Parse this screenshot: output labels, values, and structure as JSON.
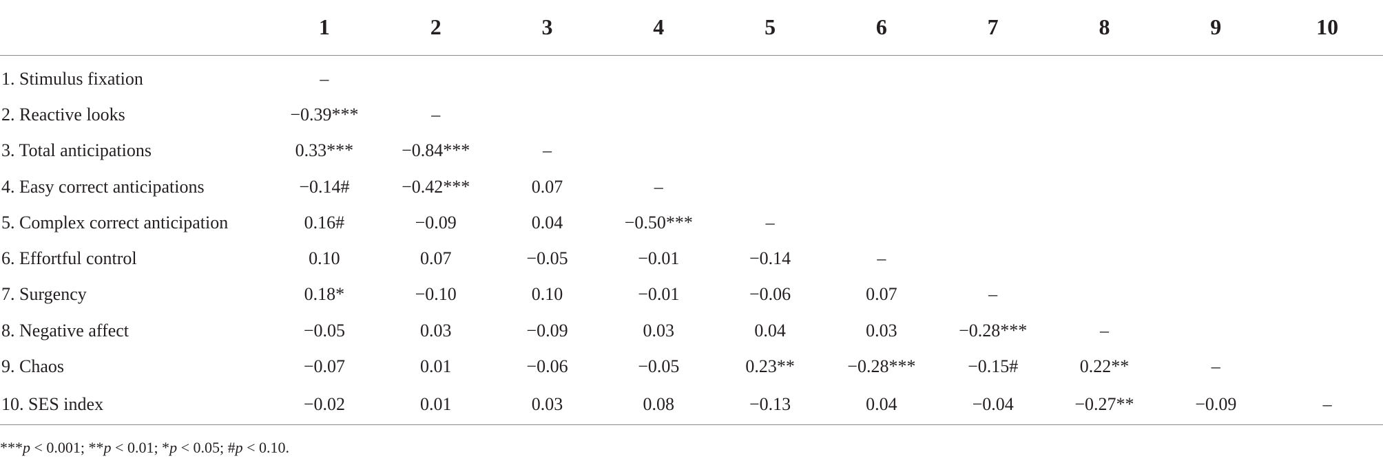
{
  "table": {
    "headers": [
      "",
      "1",
      "2",
      "3",
      "4",
      "5",
      "6",
      "7",
      "8",
      "9",
      "10"
    ],
    "rows": [
      {
        "label": "1. Stimulus fixation",
        "cells": [
          "–",
          "",
          "",
          "",
          "",
          "",
          "",
          "",
          "",
          ""
        ]
      },
      {
        "label": "2. Reactive looks",
        "cells": [
          "−0.39***",
          "–",
          "",
          "",
          "",
          "",
          "",
          "",
          "",
          ""
        ]
      },
      {
        "label": "3. Total anticipations",
        "cells": [
          "0.33***",
          "−0.84***",
          "–",
          "",
          "",
          "",
          "",
          "",
          "",
          ""
        ]
      },
      {
        "label": "4. Easy correct anticipations",
        "cells": [
          "−0.14#",
          "−0.42***",
          "0.07",
          "–",
          "",
          "",
          "",
          "",
          "",
          ""
        ]
      },
      {
        "label": "5. Complex correct anticipation",
        "cells": [
          "0.16#",
          "−0.09",
          "0.04",
          "−0.50***",
          "–",
          "",
          "",
          "",
          "",
          ""
        ]
      },
      {
        "label": "6. Effortful control",
        "cells": [
          "0.10",
          "0.07",
          "−0.05",
          "−0.01",
          "−0.14",
          "–",
          "",
          "",
          "",
          ""
        ]
      },
      {
        "label": "7. Surgency",
        "cells": [
          "0.18*",
          "−0.10",
          "0.10",
          "−0.01",
          "−0.06",
          "0.07",
          "–",
          "",
          "",
          ""
        ]
      },
      {
        "label": "8. Negative affect",
        "cells": [
          "−0.05",
          "0.03",
          "−0.09",
          "0.03",
          "0.04",
          "0.03",
          "−0.28***",
          "–",
          "",
          ""
        ]
      },
      {
        "label": "9. Chaos",
        "cells": [
          "−0.07",
          "0.01",
          "−0.06",
          "−0.05",
          "0.23**",
          "−0.28***",
          "−0.15#",
          "0.22**",
          "–",
          ""
        ]
      },
      {
        "label": "10. SES index",
        "cells": [
          "−0.02",
          "0.01",
          "0.03",
          "0.08",
          "−0.13",
          "0.04",
          "−0.04",
          "−0.27**",
          "−0.09",
          "–"
        ]
      }
    ]
  },
  "footnote": {
    "parts": [
      {
        "text": "***",
        "italic": false
      },
      {
        "text": "p",
        "italic": true
      },
      {
        "text": " < 0.001; **",
        "italic": false
      },
      {
        "text": "p",
        "italic": true
      },
      {
        "text": " < 0.01; *",
        "italic": false
      },
      {
        "text": "p",
        "italic": true
      },
      {
        "text": " < 0.05; #",
        "italic": false
      },
      {
        "text": "p",
        "italic": true
      },
      {
        "text": " < 0.10.",
        "italic": false
      }
    ]
  }
}
